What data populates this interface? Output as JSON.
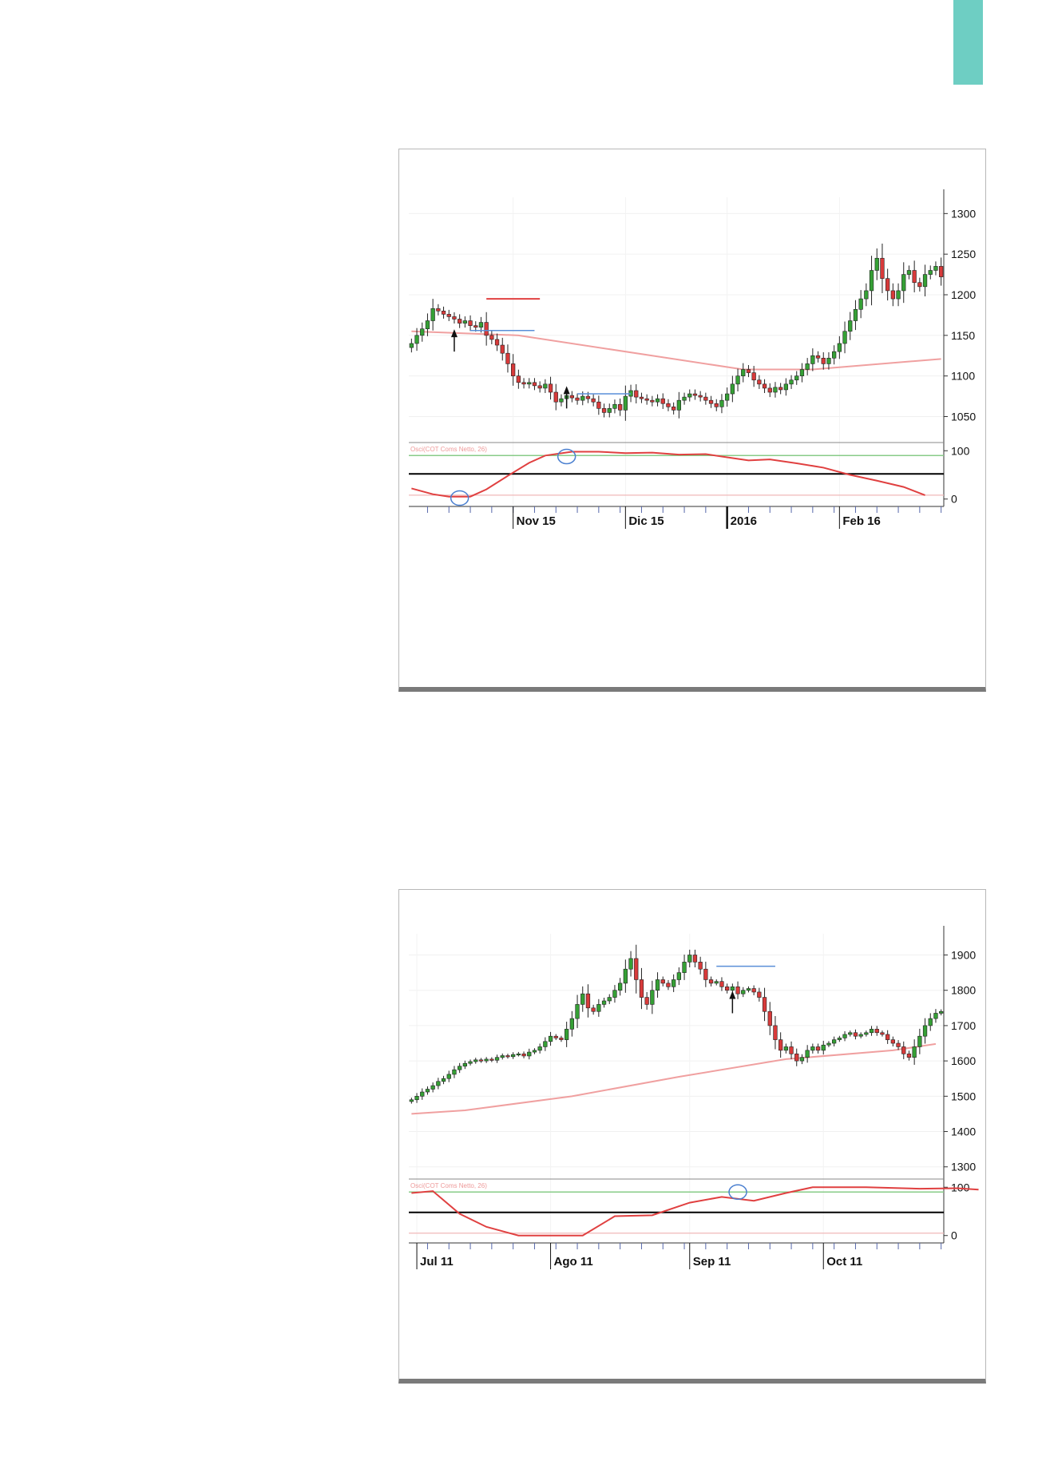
{
  "page": {
    "tab_color": "#6ecec3"
  },
  "chart_data": [
    {
      "type": "candlestick",
      "price_axis": {
        "ticks": [
          "1300",
          "1250",
          "1200",
          "1150",
          "1100",
          "1050"
        ],
        "ylim": [
          1020,
          1320
        ]
      },
      "osc_axis": {
        "ticks": [
          "100",
          "0"
        ],
        "ylim": [
          -12,
          112
        ]
      },
      "osc_label": "Osci(COT Coms Netto, 26)",
      "date_labels": [
        "Nov 15",
        "Dic 15",
        "2016",
        "Feb 16"
      ],
      "date_label_index": [
        19,
        40,
        59,
        80
      ],
      "bar_count": 100,
      "colors": {
        "up": "#35a035",
        "down": "#d83a3a",
        "ma": "#f0a0a0",
        "osc": "#e04040",
        "upper_band": "#88cc88",
        "lower_band": "#f0b8b8",
        "mid_band": "#000000",
        "circle": "#4a7fd0",
        "hline_red": "#e04040",
        "hline_blue": "#5a8fd8"
      },
      "closes": [
        1140,
        1150,
        1158,
        1168,
        1183,
        1180,
        1176,
        1173,
        1170,
        1165,
        1168,
        1162,
        1160,
        1166,
        1150,
        1145,
        1138,
        1128,
        1115,
        1100,
        1092,
        1090,
        1092,
        1088,
        1085,
        1090,
        1080,
        1068,
        1072,
        1076,
        1073,
        1070,
        1075,
        1072,
        1068,
        1060,
        1055,
        1060,
        1065,
        1058,
        1075,
        1082,
        1074,
        1072,
        1070,
        1068,
        1072,
        1066,
        1062,
        1058,
        1070,
        1074,
        1078,
        1076,
        1074,
        1070,
        1066,
        1062,
        1070,
        1078,
        1090,
        1100,
        1108,
        1104,
        1095,
        1090,
        1085,
        1080,
        1086,
        1083,
        1090,
        1095,
        1100,
        1108,
        1115,
        1125,
        1122,
        1115,
        1122,
        1130,
        1140,
        1155,
        1168,
        1182,
        1195,
        1205,
        1230,
        1245,
        1220,
        1205,
        1195,
        1205,
        1225,
        1230,
        1215,
        1210,
        1225,
        1230,
        1235,
        1222
      ],
      "ma_line": [
        [
          0,
          1155
        ],
        [
          20,
          1150
        ],
        [
          45,
          1125
        ],
        [
          62,
          1108
        ],
        [
          75,
          1108
        ],
        [
          99,
          1121
        ]
      ],
      "oscillator": [
        [
          0,
          22
        ],
        [
          4,
          10
        ],
        [
          7,
          5
        ],
        [
          11,
          5
        ],
        [
          14,
          20
        ],
        [
          18,
          48
        ],
        [
          22,
          75
        ],
        [
          25,
          90
        ],
        [
          30,
          98
        ],
        [
          35,
          98
        ],
        [
          40,
          95
        ],
        [
          45,
          96
        ],
        [
          50,
          92
        ],
        [
          55,
          93
        ],
        [
          58,
          88
        ],
        [
          63,
          80
        ],
        [
          67,
          82
        ],
        [
          72,
          74
        ],
        [
          77,
          65
        ],
        [
          82,
          50
        ],
        [
          87,
          38
        ],
        [
          92,
          25
        ],
        [
          96,
          8
        ]
      ],
      "osc_levels": {
        "upper": 90,
        "mid": 52,
        "lower": 8
      },
      "annotations": {
        "arrows": [
          [
            8,
            1130
          ],
          [
            29,
            1060
          ]
        ],
        "hline_red": {
          "x": [
            14,
            24
          ],
          "y": 1195
        },
        "hline_blue": [
          {
            "x": [
              11,
              23
            ],
            "y": 1156
          },
          {
            "x": [
              31,
              41
            ],
            "y": 1078
          }
        ],
        "circles": [
          [
            9,
            2
          ],
          [
            29,
            88
          ]
        ]
      }
    },
    {
      "type": "candlestick",
      "price_axis": {
        "ticks": [
          "1900",
          "1800",
          "1700",
          "1600",
          "1500",
          "1400",
          "1300"
        ],
        "ylim": [
          1270,
          1960
        ]
      },
      "osc_axis": {
        "ticks": [
          "100",
          "0"
        ],
        "ylim": [
          -12,
          112
        ]
      },
      "osc_label": "Osci(COT Coms Netto, 26)",
      "date_labels": [
        "Jul 11",
        "Ago 11",
        "Sep 11",
        "Oct 11"
      ],
      "date_label_index": [
        1,
        26,
        52,
        77
      ],
      "bar_count": 100,
      "colors": {
        "up": "#35a035",
        "down": "#d83a3a",
        "ma": "#f0a0a0",
        "osc": "#e04040",
        "upper_band": "#88cc88",
        "lower_band": "#f0b8b8",
        "mid_band": "#000000",
        "circle": "#4a7fd0",
        "hline_red": "#e04040",
        "hline_blue": "#5a8fd8"
      },
      "closes": [
        1490,
        1500,
        1512,
        1520,
        1530,
        1542,
        1550,
        1562,
        1575,
        1585,
        1593,
        1598,
        1603,
        1600,
        1605,
        1602,
        1610,
        1615,
        1612,
        1618,
        1620,
        1614,
        1625,
        1630,
        1640,
        1655,
        1670,
        1665,
        1660,
        1690,
        1720,
        1760,
        1790,
        1750,
        1740,
        1760,
        1770,
        1780,
        1800,
        1820,
        1860,
        1890,
        1830,
        1780,
        1760,
        1800,
        1830,
        1820,
        1810,
        1830,
        1850,
        1880,
        1900,
        1880,
        1860,
        1830,
        1820,
        1825,
        1810,
        1800,
        1810,
        1790,
        1800,
        1805,
        1795,
        1780,
        1740,
        1700,
        1660,
        1630,
        1640,
        1620,
        1600,
        1610,
        1630,
        1640,
        1630,
        1645,
        1650,
        1660,
        1665,
        1675,
        1680,
        1670,
        1675,
        1680,
        1690,
        1680,
        1675,
        1660,
        1650,
        1640,
        1620,
        1610,
        1640,
        1670,
        1700,
        1720,
        1735,
        1740
      ],
      "ma_line": [
        [
          0,
          1450
        ],
        [
          10,
          1460
        ],
        [
          30,
          1500
        ],
        [
          50,
          1555
        ],
        [
          70,
          1605
        ],
        [
          90,
          1630
        ],
        [
          98,
          1648
        ]
      ],
      "oscillator": [
        [
          0,
          88
        ],
        [
          4,
          92
        ],
        [
          9,
          45
        ],
        [
          14,
          18
        ],
        [
          20,
          0
        ],
        [
          26,
          0
        ],
        [
          32,
          0
        ],
        [
          38,
          40
        ],
        [
          45,
          42
        ],
        [
          52,
          68
        ],
        [
          58,
          80
        ],
        [
          64,
          72
        ],
        [
          70,
          88
        ],
        [
          75,
          100
        ],
        [
          85,
          100
        ],
        [
          95,
          97
        ],
        [
          102,
          98
        ],
        [
          106,
          95
        ]
      ],
      "osc_levels": {
        "upper": 90,
        "mid": 48,
        "lower": 5
      },
      "annotations": {
        "arrows": [
          [
            60,
            1735
          ]
        ],
        "hline_red": null,
        "hline_blue": [
          {
            "x": [
              57,
              68
            ],
            "y": 1868
          }
        ],
        "circles": [
          [
            61,
            90
          ]
        ]
      }
    }
  ]
}
